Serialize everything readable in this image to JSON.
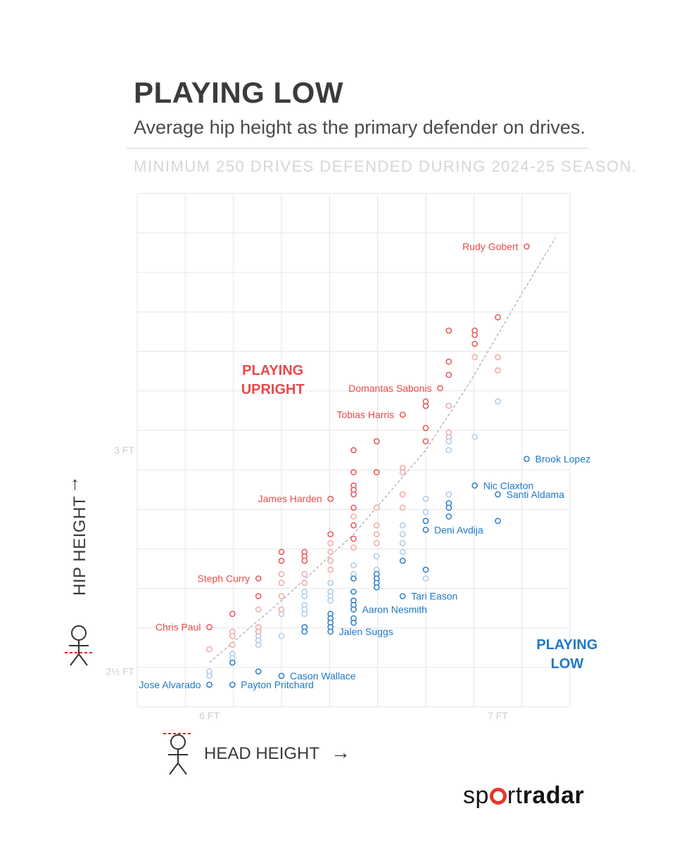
{
  "title": "PLAYING LOW",
  "subtitle": "Average hip height as the primary defender on drives.",
  "note": "MINIMUM 250 DRIVES DEFENDED DURING 2024-25 SEASON.",
  "ylabel": "HIP HEIGHT",
  "xlabel": "HEAD HEIGHT",
  "arrow_up": "↑",
  "arrow_right": "→",
  "logo": {
    "part1": "sp",
    "part2": "rt",
    "part3": "radar"
  },
  "colors": {
    "upright": "#e84a4a",
    "low": "#1f78c4",
    "upright_light": "#f0a4a4",
    "low_light": "#a8c8e8",
    "grid": "#e6e6e6",
    "trend": "#aaaaaa"
  },
  "chart_data": {
    "type": "scatter",
    "title": "PLAYING LOW",
    "xlabel": "HEAD HEIGHT",
    "ylabel": "HIP HEIGHT",
    "xlim": [
      5.75,
      7.25
    ],
    "ylim": [
      2.42,
      3.58
    ],
    "xticks": [
      {
        "v": 6.0,
        "label": "6 FT"
      },
      {
        "v": 7.0,
        "label": "7 FT"
      }
    ],
    "yticks": [
      {
        "v": 2.5,
        "label": "2½ FT"
      },
      {
        "v": 3.0,
        "label": "3 FT"
      }
    ],
    "region_labels": [
      {
        "text": [
          "PLAYING",
          "UPRIGHT"
        ],
        "group": "upright",
        "x": 6.22,
        "y": 3.17
      },
      {
        "text": [
          "PLAYING",
          "LOW"
        ],
        "group": "low",
        "x": 7.24,
        "y": 2.55
      }
    ],
    "trend_line": [
      [
        6.0,
        2.52
      ],
      [
        6.25,
        2.66
      ],
      [
        6.5,
        2.81
      ],
      [
        6.75,
        3.0
      ],
      [
        6.9,
        3.15
      ],
      [
        7.08,
        3.35
      ],
      [
        7.2,
        3.48
      ]
    ],
    "labeled_points": [
      {
        "name": "Rudy Gobert",
        "x": 7.1,
        "y": 3.46,
        "group": "upright",
        "side": "left"
      },
      {
        "name": "Domantas Sabonis",
        "x": 6.8,
        "y": 3.14,
        "group": "upright",
        "side": "left"
      },
      {
        "name": "Tobias Harris",
        "x": 6.67,
        "y": 3.08,
        "group": "upright",
        "side": "left"
      },
      {
        "name": "James Harden",
        "x": 6.42,
        "y": 2.89,
        "group": "upright",
        "side": "left"
      },
      {
        "name": "Steph Curry",
        "x": 6.17,
        "y": 2.71,
        "group": "upright",
        "side": "left"
      },
      {
        "name": "Chris Paul",
        "x": 6.0,
        "y": 2.6,
        "group": "upright",
        "side": "left"
      },
      {
        "name": "Jose Alvarado",
        "x": 6.0,
        "y": 2.47,
        "group": "low",
        "side": "left"
      },
      {
        "name": "Brook Lopez",
        "x": 7.1,
        "y": 2.98,
        "group": "low",
        "side": "right"
      },
      {
        "name": "Nic Claxton",
        "x": 6.92,
        "y": 2.92,
        "group": "low",
        "side": "right"
      },
      {
        "name": "Santi Aldama",
        "x": 7.0,
        "y": 2.9,
        "group": "low",
        "side": "right"
      },
      {
        "name": "Deni Avdija",
        "x": 6.75,
        "y": 2.82,
        "group": "low",
        "side": "right"
      },
      {
        "name": "Tari Eason",
        "x": 6.67,
        "y": 2.67,
        "group": "low",
        "side": "right"
      },
      {
        "name": "Aaron Nesmith",
        "x": 6.5,
        "y": 2.64,
        "group": "low",
        "side": "right"
      },
      {
        "name": "Jalen Suggs",
        "x": 6.42,
        "y": 2.59,
        "group": "low",
        "side": "right"
      },
      {
        "name": "Cason Wallace",
        "x": 6.25,
        "y": 2.49,
        "group": "low",
        "side": "right"
      },
      {
        "name": "Payton Pritchard",
        "x": 6.08,
        "y": 2.47,
        "group": "low",
        "side": "right"
      }
    ],
    "points": [
      [
        7.0,
        3.3,
        "upright",
        1
      ],
      [
        6.92,
        3.27,
        "upright",
        1
      ],
      [
        6.92,
        3.26,
        "upright",
        1
      ],
      [
        6.83,
        3.27,
        "upright",
        1
      ],
      [
        6.92,
        3.24,
        "upright",
        1
      ],
      [
        6.83,
        3.2,
        "upright",
        1
      ],
      [
        6.92,
        3.21,
        "upright",
        0.5
      ],
      [
        7.0,
        3.21,
        "upright",
        0.5
      ],
      [
        6.83,
        3.17,
        "upright",
        1
      ],
      [
        7.0,
        3.18,
        "upright",
        0.5
      ],
      [
        6.75,
        3.1,
        "upright",
        1
      ],
      [
        6.75,
        3.11,
        "upright",
        1
      ],
      [
        6.83,
        3.1,
        "upright",
        0.5
      ],
      [
        7.0,
        3.11,
        "low",
        0.5
      ],
      [
        6.75,
        3.05,
        "upright",
        1
      ],
      [
        6.83,
        3.04,
        "upright",
        0.5
      ],
      [
        6.83,
        3.03,
        "upright",
        0.5
      ],
      [
        6.75,
        3.02,
        "upright",
        1
      ],
      [
        6.92,
        3.03,
        "low",
        0.5
      ],
      [
        6.83,
        3.02,
        "low",
        0.5
      ],
      [
        6.83,
        3.0,
        "low",
        0.5
      ],
      [
        6.58,
        3.02,
        "upright",
        1
      ],
      [
        6.5,
        3.0,
        "upright",
        1
      ],
      [
        6.58,
        2.95,
        "upright",
        1
      ],
      [
        6.67,
        2.96,
        "upright",
        0.5
      ],
      [
        6.67,
        2.95,
        "upright",
        0.5
      ],
      [
        6.5,
        2.95,
        "upright",
        1
      ],
      [
        6.5,
        2.92,
        "upright",
        1
      ],
      [
        6.5,
        2.91,
        "upright",
        1
      ],
      [
        6.5,
        2.9,
        "upright",
        1
      ],
      [
        6.58,
        2.87,
        "upright",
        0.5
      ],
      [
        6.67,
        2.9,
        "upright",
        0.5
      ],
      [
        6.67,
        2.87,
        "upright",
        0.5
      ],
      [
        6.75,
        2.89,
        "low",
        0.5
      ],
      [
        6.83,
        2.9,
        "low",
        0.5
      ],
      [
        6.83,
        2.88,
        "low",
        1
      ],
      [
        6.83,
        2.87,
        "low",
        1
      ],
      [
        6.83,
        2.85,
        "low",
        1
      ],
      [
        6.75,
        2.86,
        "low",
        0.5
      ],
      [
        7.0,
        2.84,
        "low",
        1
      ],
      [
        6.5,
        2.87,
        "upright",
        1
      ],
      [
        6.5,
        2.85,
        "upright",
        0.5
      ],
      [
        6.5,
        2.83,
        "upright",
        1
      ],
      [
        6.58,
        2.83,
        "upright",
        0.5
      ],
      [
        6.58,
        2.81,
        "upright",
        0.5
      ],
      [
        6.67,
        2.83,
        "low",
        0.5
      ],
      [
        6.67,
        2.81,
        "low",
        0.5
      ],
      [
        6.75,
        2.84,
        "low",
        1
      ],
      [
        6.42,
        2.81,
        "upright",
        1
      ],
      [
        6.42,
        2.79,
        "upright",
        0.5
      ],
      [
        6.5,
        2.8,
        "upright",
        1
      ],
      [
        6.5,
        2.78,
        "upright",
        0.5
      ],
      [
        6.58,
        2.79,
        "upright",
        0.5
      ],
      [
        6.67,
        2.79,
        "low",
        0.5
      ],
      [
        6.67,
        2.77,
        "low",
        0.5
      ],
      [
        6.67,
        2.75,
        "low",
        1
      ],
      [
        6.58,
        2.76,
        "low",
        0.5
      ],
      [
        6.42,
        2.77,
        "upright",
        0.5
      ],
      [
        6.42,
        2.75,
        "upright",
        0.5
      ],
      [
        6.33,
        2.77,
        "upright",
        1
      ],
      [
        6.33,
        2.76,
        "upright",
        1
      ],
      [
        6.33,
        2.75,
        "upright",
        1
      ],
      [
        6.25,
        2.77,
        "upright",
        1
      ],
      [
        6.25,
        2.75,
        "upright",
        1
      ],
      [
        6.42,
        2.73,
        "upright",
        0.5
      ],
      [
        6.5,
        2.74,
        "low",
        0.5
      ],
      [
        6.58,
        2.73,
        "low",
        0.5
      ],
      [
        6.58,
        2.72,
        "low",
        1
      ],
      [
        6.58,
        2.71,
        "low",
        1
      ],
      [
        6.58,
        2.7,
        "low",
        1
      ],
      [
        6.58,
        2.69,
        "low",
        1
      ],
      [
        6.75,
        2.71,
        "low",
        0.5
      ],
      [
        6.5,
        2.72,
        "low",
        0.5
      ],
      [
        6.5,
        2.71,
        "low",
        1
      ],
      [
        6.5,
        2.68,
        "low",
        1
      ],
      [
        6.75,
        2.73,
        "low",
        1
      ],
      [
        6.33,
        2.72,
        "upright",
        0.5
      ],
      [
        6.33,
        2.7,
        "upright",
        0.5
      ],
      [
        6.25,
        2.72,
        "upright",
        0.5
      ],
      [
        6.25,
        2.7,
        "upright",
        0.5
      ],
      [
        6.17,
        2.67,
        "upright",
        1
      ],
      [
        6.25,
        2.67,
        "upright",
        0.5
      ],
      [
        6.33,
        2.68,
        "low",
        0.5
      ],
      [
        6.33,
        2.67,
        "low",
        0.5
      ],
      [
        6.42,
        2.7,
        "low",
        0.5
      ],
      [
        6.42,
        2.68,
        "low",
        0.5
      ],
      [
        6.42,
        2.67,
        "low",
        0.5
      ],
      [
        6.42,
        2.66,
        "low",
        0.5
      ],
      [
        6.5,
        2.66,
        "low",
        1
      ],
      [
        6.5,
        2.65,
        "low",
        1
      ],
      [
        6.5,
        2.62,
        "low",
        1
      ],
      [
        6.5,
        2.61,
        "low",
        1
      ],
      [
        6.42,
        2.63,
        "low",
        1
      ],
      [
        6.42,
        2.62,
        "low",
        1
      ],
      [
        6.42,
        2.61,
        "low",
        1
      ],
      [
        6.42,
        2.6,
        "low",
        1
      ],
      [
        6.33,
        2.65,
        "low",
        0.5
      ],
      [
        6.33,
        2.64,
        "low",
        0.5
      ],
      [
        6.33,
        2.63,
        "low",
        0.5
      ],
      [
        6.25,
        2.63,
        "low",
        0.5
      ],
      [
        6.25,
        2.64,
        "upright",
        0.5
      ],
      [
        6.17,
        2.64,
        "upright",
        0.5
      ],
      [
        6.08,
        2.63,
        "upright",
        1
      ],
      [
        6.33,
        2.6,
        "low",
        1
      ],
      [
        6.33,
        2.59,
        "low",
        1
      ],
      [
        6.25,
        2.58,
        "low",
        0.5
      ],
      [
        6.17,
        2.6,
        "low",
        0.5
      ],
      [
        6.17,
        2.59,
        "low",
        0.5
      ],
      [
        6.17,
        2.58,
        "low",
        0.5
      ],
      [
        6.17,
        2.57,
        "low",
        0.5
      ],
      [
        6.17,
        2.56,
        "low",
        0.5
      ],
      [
        6.17,
        2.6,
        "upright",
        0.5
      ],
      [
        6.17,
        2.59,
        "upright",
        0.5
      ],
      [
        6.08,
        2.59,
        "upright",
        0.5
      ],
      [
        6.08,
        2.58,
        "upright",
        0.5
      ],
      [
        6.08,
        2.56,
        "upright",
        0.5
      ],
      [
        6.0,
        2.55,
        "upright",
        0.5
      ],
      [
        6.08,
        2.54,
        "low",
        0.5
      ],
      [
        6.08,
        2.53,
        "low",
        0.5
      ],
      [
        6.08,
        2.52,
        "low",
        1
      ],
      [
        6.17,
        2.5,
        "low",
        1
      ],
      [
        6.0,
        2.5,
        "low",
        0.5
      ],
      [
        6.0,
        2.49,
        "low",
        0.5
      ]
    ]
  }
}
